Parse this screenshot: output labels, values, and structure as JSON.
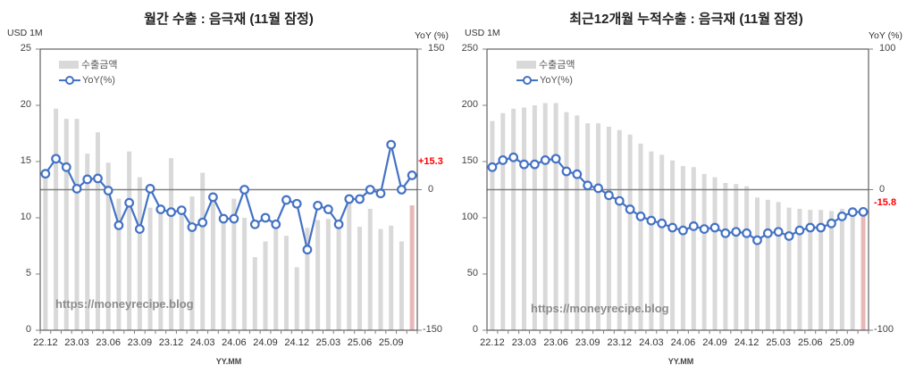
{
  "chart_data": [
    {
      "type": "bar+line",
      "title": "월간 수출 : 음극재 (11월 잠정)",
      "xlabel": "YY.MM",
      "ylabel": "USD 1M",
      "y2label": "YoY (%)",
      "ylim": [
        0,
        25
      ],
      "y2lim": [
        -150,
        150
      ],
      "yticks": [
        0,
        5,
        10,
        15,
        20,
        25
      ],
      "y2ticks": [
        -150,
        0,
        150
      ],
      "xticks": [
        "22.12",
        "23.03",
        "23.06",
        "23.09",
        "23.12",
        "24.03",
        "24.06",
        "24.09",
        "24.12",
        "25.03",
        "25.06",
        "25.09"
      ],
      "legend": [
        "수출금액",
        "YoY(%)"
      ],
      "annotation": "+15.3",
      "watermark": "https://moneyrecipe.blog",
      "categories": [
        "22.12",
        "23.01",
        "23.02",
        "23.03",
        "23.04",
        "23.05",
        "23.06",
        "23.07",
        "23.08",
        "23.09",
        "23.10",
        "23.11",
        "23.12",
        "24.01",
        "24.02",
        "24.03",
        "24.04",
        "24.05",
        "24.06",
        "24.07",
        "24.08",
        "24.09",
        "24.10",
        "24.11",
        "24.12",
        "25.01",
        "25.02",
        "25.03",
        "25.04",
        "25.05",
        "25.06",
        "25.07",
        "25.08",
        "25.09",
        "25.10",
        "25.11"
      ],
      "series": [
        {
          "name": "수출금액",
          "type": "bar",
          "values": [
            13.5,
            19.7,
            18.8,
            18.8,
            15.7,
            17.6,
            14.9,
            11.7,
            15.9,
            13.6,
            10.9,
            10.7,
            15.3,
            10.9,
            11.9,
            14.0,
            11.8,
            10.3,
            11.7,
            10.0,
            6.5,
            7.9,
            9.4,
            8.4,
            5.6,
            9.1,
            9.8,
            9.9,
            9.1,
            11.7,
            9.2,
            10.8,
            9.0,
            9.3,
            7.9,
            11.1
          ]
        },
        {
          "name": "YoY(%)",
          "type": "line",
          "values": [
            17,
            33,
            24,
            1,
            11,
            12,
            -1,
            -38,
            -14,
            -42,
            1,
            -21,
            -24,
            -22,
            -40,
            -35,
            -8,
            -31,
            -31,
            0,
            -37,
            -30,
            -37,
            -11,
            -15,
            -64,
            -17,
            -21,
            -37,
            -10,
            -10,
            0,
            -4,
            48,
            0,
            15.3
          ]
        }
      ]
    },
    {
      "type": "bar+line",
      "title": "최근12개월 누적수출 : 음극재 (11월 잠정)",
      "xlabel": "YY.MM",
      "ylabel": "USD 1M",
      "y2label": "YoY (%)",
      "ylim": [
        0,
        250
      ],
      "y2lim": [
        -100,
        100
      ],
      "yticks": [
        0,
        50,
        100,
        150,
        200,
        250
      ],
      "y2ticks": [
        -100,
        0,
        100
      ],
      "xticks": [
        "22.12",
        "23.03",
        "23.06",
        "23.09",
        "23.12",
        "24.03",
        "24.06",
        "24.09",
        "24.12",
        "25.03",
        "25.06",
        "25.09"
      ],
      "legend": [
        "수출금액",
        "YoY(%)"
      ],
      "annotation": "-15.8",
      "watermark": "https://moneyrecipe.blog",
      "categories": [
        "22.12",
        "23.01",
        "23.02",
        "23.03",
        "23.04",
        "23.05",
        "23.06",
        "23.07",
        "23.08",
        "23.09",
        "23.10",
        "23.11",
        "23.12",
        "24.01",
        "24.02",
        "24.03",
        "24.04",
        "24.05",
        "24.06",
        "24.07",
        "24.08",
        "24.09",
        "24.10",
        "24.11",
        "24.12",
        "25.01",
        "25.02",
        "25.03",
        "25.04",
        "25.05",
        "25.06",
        "25.07",
        "25.08",
        "25.09",
        "25.10",
        "25.11"
      ],
      "series": [
        {
          "name": "수출금액",
          "type": "bar",
          "values": [
            186,
            193,
            197,
            198,
            200,
            202,
            202,
            194,
            191,
            184,
            184,
            181,
            178,
            174,
            166,
            159,
            156,
            151,
            146,
            145,
            139,
            136,
            131,
            130,
            128,
            118,
            116,
            114,
            109,
            108,
            107,
            107,
            106,
            108,
            108,
            106
          ]
        },
        {
          "name": "YoY(%)",
          "type": "line",
          "values": [
            16,
            21,
            23,
            18,
            18,
            21,
            22,
            13,
            11,
            3,
            1,
            -4,
            -8,
            -14,
            -19,
            -22,
            -24,
            -27,
            -29,
            -26,
            -28,
            -27,
            -31,
            -30,
            -31,
            -36,
            -31,
            -30,
            -33,
            -29,
            -27,
            -27,
            -24,
            -19,
            -16,
            -15.8
          ]
        }
      ]
    }
  ]
}
